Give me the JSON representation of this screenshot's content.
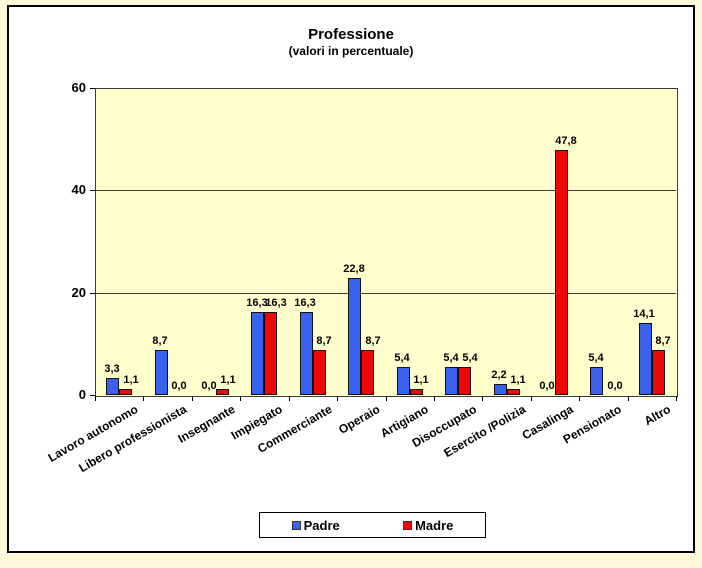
{
  "page": {
    "outer_background": "#FDF8DA",
    "frame_background": "#FFFFFF",
    "frame_border_color": "#000000"
  },
  "chart_data": {
    "type": "bar",
    "title": "Professione",
    "subtitle": "(valori in percentuale)",
    "categories": [
      "Lavoro autonomo",
      "Libero professionista",
      "Insegnante",
      "Impiegato",
      "Commerciante",
      "Operaio",
      "Artigiano",
      "Disoccupato",
      "Esercito /Polizia",
      "Casalinga",
      "Pensionato",
      "Altro"
    ],
    "series": [
      {
        "name": "Padre",
        "color": "#3B62EE",
        "values": [
          3.3,
          8.7,
          0.0,
          16.3,
          16.3,
          22.8,
          5.4,
          5.4,
          2.2,
          0.0,
          5.4,
          14.1
        ],
        "labels": [
          "3,3",
          "8,7",
          "0,0",
          "16,3",
          "16,3",
          "22,8",
          "5,4",
          "5,4",
          "2,2",
          "0,0",
          "5,4",
          "14,1"
        ]
      },
      {
        "name": "Madre",
        "color": "#EE0909",
        "values": [
          1.1,
          0.0,
          1.1,
          16.3,
          8.7,
          8.7,
          1.1,
          5.4,
          1.1,
          47.8,
          0.0,
          8.7
        ],
        "labels": [
          "1,1",
          "0,0",
          "1,1",
          "16,3",
          "8,7",
          "8,7",
          "1,1",
          "5,4",
          "1,1",
          "47,8",
          "0,0",
          "8,7"
        ]
      }
    ],
    "ylim": [
      0,
      60
    ],
    "yticks": [
      0,
      20,
      40,
      60
    ],
    "ytick_labels": [
      "0",
      "20",
      "40",
      "60"
    ],
    "grid": "horizontal gridlines at 20 and 40",
    "plot_background": "#FFFFCE",
    "legend_position": "bottom-center",
    "decimal_separator": ","
  }
}
